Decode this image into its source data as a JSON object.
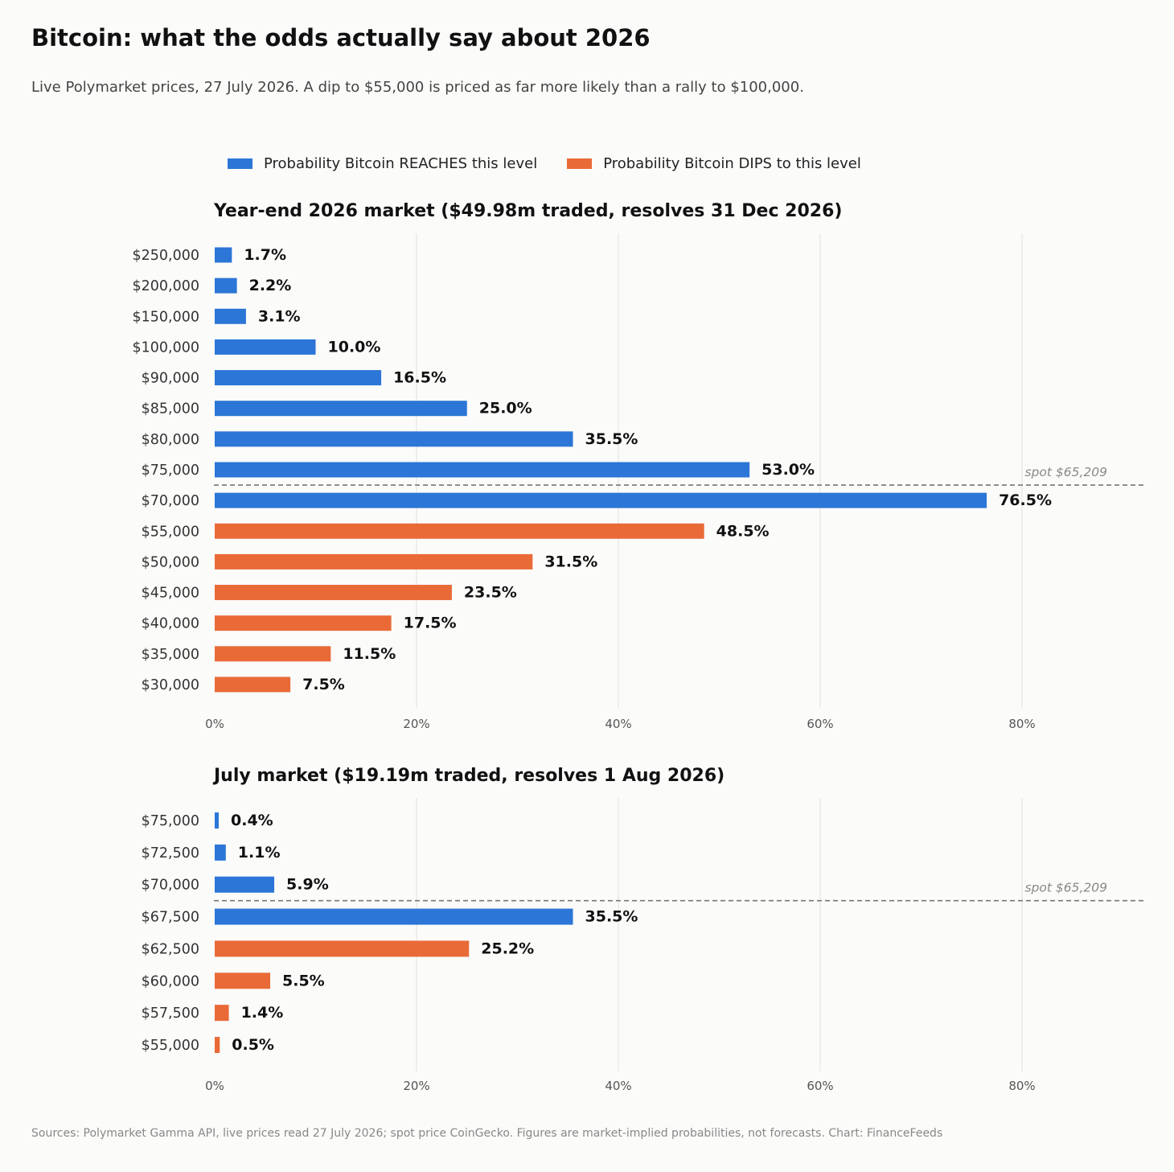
{
  "title": "Bitcoin: what the odds actually say about 2026",
  "subtitle": "Live Polymarket prices, 27 July 2026. A dip to $55,000 is priced as far more likely than a rally to $100,000.",
  "legend": {
    "reaches": "Probability Bitcoin REACHES this level",
    "dips": "Probability Bitcoin DIPS to this level"
  },
  "colors": {
    "reaches": "#2b76d6",
    "dips": "#e96a37",
    "grid": "#e6e6e2",
    "spot": "#777777"
  },
  "source": "Sources: Polymarket Gamma API, live prices read 27 July 2026; spot price CoinGecko.  Figures are market-implied probabilities, not forecasts.   Chart: FinanceFeeds",
  "chart_data": [
    {
      "type": "bar",
      "orientation": "horizontal",
      "title": "Year-end 2026 market  ($49.98m traded, resolves 31 Dec 2026)",
      "categories": [
        "$250,000",
        "$200,000",
        "$150,000",
        "$100,000",
        "$90,000",
        "$85,000",
        "$80,000",
        "$75,000",
        "$70,000",
        "$55,000",
        "$50,000",
        "$45,000",
        "$40,000",
        "$35,000",
        "$30,000"
      ],
      "values": [
        1.7,
        2.2,
        3.1,
        10.0,
        16.5,
        25.0,
        35.5,
        53.0,
        76.5,
        48.5,
        31.5,
        23.5,
        17.5,
        11.5,
        7.5
      ],
      "value_labels": [
        "1.7%",
        "2.2%",
        "3.1%",
        "10.0%",
        "16.5%",
        "25.0%",
        "35.5%",
        "53.0%",
        "76.5%",
        "48.5%",
        "31.5%",
        "23.5%",
        "17.5%",
        "11.5%",
        "7.5%"
      ],
      "series_type": [
        "reaches",
        "reaches",
        "reaches",
        "reaches",
        "reaches",
        "reaches",
        "reaches",
        "reaches",
        "reaches",
        "dips",
        "dips",
        "dips",
        "dips",
        "dips",
        "dips"
      ],
      "xlim": [
        0,
        92
      ],
      "xticks": [
        0,
        20,
        40,
        60,
        80
      ],
      "xtick_labels": [
        "0%",
        "20%",
        "40%",
        "60%",
        "80%"
      ],
      "grid": true,
      "spot_label": "spot  $65,209",
      "spot_after_category": "$75,000"
    },
    {
      "type": "bar",
      "orientation": "horizontal",
      "title": "July market  ($19.19m traded, resolves 1 Aug 2026)",
      "categories": [
        "$75,000",
        "$72,500",
        "$70,000",
        "$67,500",
        "$62,500",
        "$60,000",
        "$57,500",
        "$55,000"
      ],
      "values": [
        0.4,
        1.1,
        5.9,
        35.5,
        25.2,
        5.5,
        1.4,
        0.5
      ],
      "value_labels": [
        "0.4%",
        "1.1%",
        "5.9%",
        "35.5%",
        "25.2%",
        "5.5%",
        "1.4%",
        "0.5%"
      ],
      "series_type": [
        "reaches",
        "reaches",
        "reaches",
        "reaches",
        "dips",
        "dips",
        "dips",
        "dips"
      ],
      "xlim": [
        0,
        92
      ],
      "xticks": [
        0,
        20,
        40,
        60,
        80
      ],
      "xtick_labels": [
        "0%",
        "20%",
        "40%",
        "60%",
        "80%"
      ],
      "grid": true,
      "spot_label": "spot  $65,209",
      "spot_after_category": "$70,000"
    }
  ]
}
